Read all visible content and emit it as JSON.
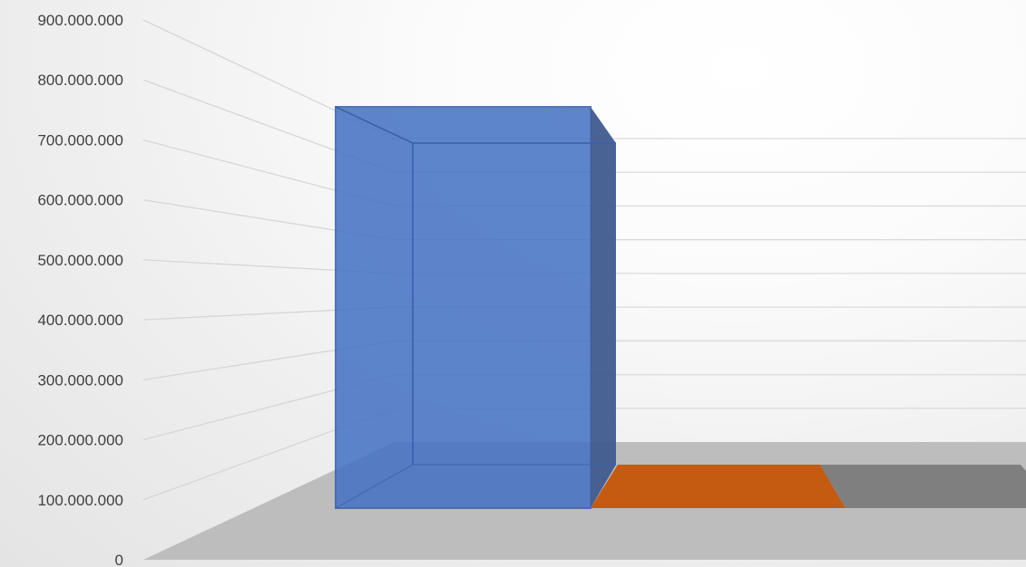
{
  "chart_data": {
    "type": "bar",
    "style": "3d-column",
    "categories": [
      "",
      "",
      ""
    ],
    "values": [
      670000000,
      0,
      0
    ],
    "colors": [
      "#4472c4",
      "#c55a11",
      "#7f7f7f"
    ],
    "ylim": [
      0,
      900000000
    ],
    "yticks": [
      0,
      100000000,
      200000000,
      300000000,
      400000000,
      500000000,
      600000000,
      700000000,
      800000000,
      900000000
    ],
    "ytick_labels": [
      "0",
      "100.000.000",
      "200.000.000",
      "300.000.000",
      "400.000.000",
      "500.000.000",
      "600.000.000",
      "700.000.000",
      "800.000.000",
      "900.000.000"
    ],
    "grid": true,
    "title": "",
    "xlabel": "",
    "ylabel": ""
  }
}
